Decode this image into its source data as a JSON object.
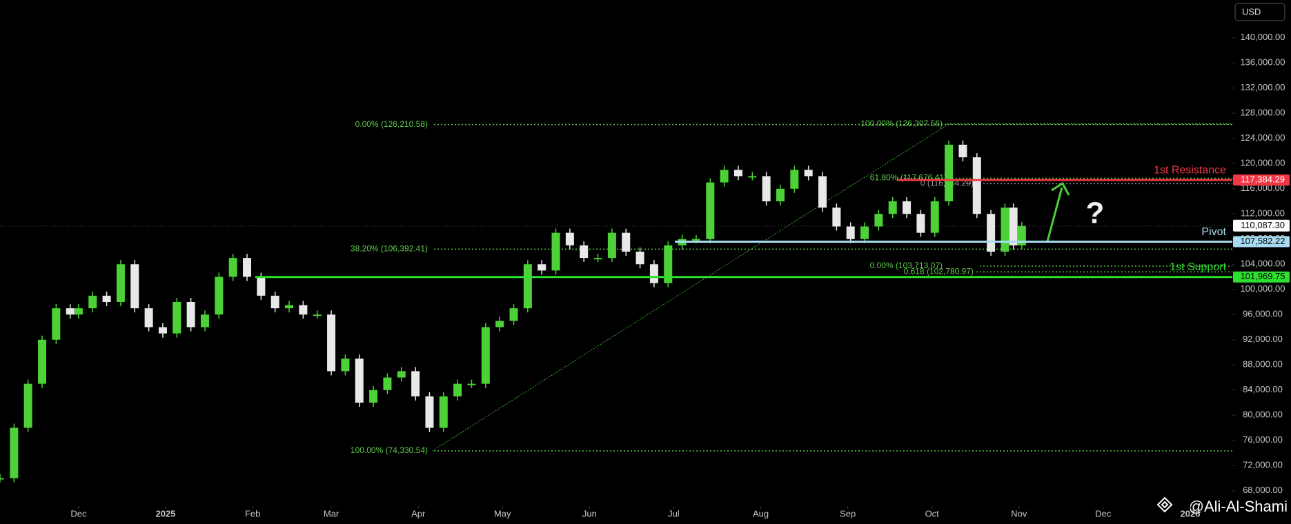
{
  "chart_data": {
    "type": "candlestick",
    "currency": "USD",
    "watermark": "@Ali-Al-Shami",
    "annotation": "?",
    "x": [
      -28,
      -23,
      -18,
      -13,
      -8,
      -3,
      0,
      5,
      10,
      15,
      20,
      25,
      30,
      35,
      40,
      45,
      50,
      55,
      60,
      65,
      70,
      75,
      80,
      85,
      90,
      95,
      100,
      105,
      110,
      115,
      120,
      125,
      130,
      135,
      140,
      145,
      150,
      155,
      160,
      165,
      170,
      175,
      180,
      185,
      190,
      195,
      200,
      205,
      210,
      215,
      220,
      225,
      230,
      235,
      240,
      245,
      250,
      255,
      260,
      265,
      270,
      275,
      280,
      285,
      290,
      295,
      300,
      305,
      310,
      315,
      320,
      325,
      330,
      333,
      336
    ],
    "values": [
      70000,
      78000,
      85000,
      92000,
      97000,
      96000,
      97000,
      99000,
      98000,
      104000,
      97000,
      94000,
      93000,
      98000,
      94000,
      96000,
      102000,
      105000,
      102000,
      99000,
      97000,
      97500,
      96000,
      96000,
      87000,
      89000,
      82000,
      84000,
      86000,
      87000,
      83000,
      78000,
      83000,
      85000,
      85000,
      94000,
      95000,
      97000,
      104000,
      103000,
      109000,
      107000,
      105000,
      105000,
      109000,
      106000,
      104000,
      101000,
      107000,
      108000,
      108000,
      117000,
      119000,
      118000,
      118000,
      114000,
      116000,
      119000,
      118000,
      113000,
      110000,
      108000,
      110000,
      112000,
      114000,
      112000,
      109000,
      114000,
      123000,
      121000,
      112000,
      106000,
      113000,
      107000,
      110087.3
    ],
    "up_color": "#4cd137",
    "down_color": "#e8e8e8",
    "xlim": [
      -28,
      411
    ],
    "xticks": [
      {
        "value": 0,
        "label": "Dec"
      },
      {
        "value": 31,
        "label": "2025"
      },
      {
        "value": 62,
        "label": "Feb"
      },
      {
        "value": 90,
        "label": "Mar"
      },
      {
        "value": 121,
        "label": "Apr"
      },
      {
        "value": 151,
        "label": "May"
      },
      {
        "value": 182,
        "label": "Jun"
      },
      {
        "value": 212,
        "label": "Jul"
      },
      {
        "value": 243,
        "label": "Aug"
      },
      {
        "value": 274,
        "label": "Sep"
      },
      {
        "value": 304,
        "label": "Oct"
      },
      {
        "value": 335,
        "label": "Nov"
      },
      {
        "value": 365,
        "label": "Dec"
      },
      {
        "value": 396,
        "label": "2026"
      }
    ],
    "ylim": [
      66000,
      146000
    ],
    "yticks": [
      {
        "value": 68000,
        "label": "68,000.00"
      },
      {
        "value": 72000,
        "label": "72,000.00"
      },
      {
        "value": 76000,
        "label": "76,000.00"
      },
      {
        "value": 80000,
        "label": "80,000.00"
      },
      {
        "value": 84000,
        "label": "84,000.00"
      },
      {
        "value": 88000,
        "label": "88,000.00"
      },
      {
        "value": 92000,
        "label": "92,000.00"
      },
      {
        "value": 96000,
        "label": "96,000.00"
      },
      {
        "value": 100000,
        "label": "100,000.00"
      },
      {
        "value": 104000,
        "label": "104,000.00"
      },
      {
        "value": 108000,
        "label": "108,000.00"
      },
      {
        "value": 112000,
        "label": "112,000.00"
      },
      {
        "value": 116000,
        "label": "116,000.00"
      },
      {
        "value": 120000,
        "label": "120,000.00"
      },
      {
        "value": 124000,
        "label": "124,000.00"
      },
      {
        "value": 128000,
        "label": "128,000.00"
      },
      {
        "value": 132000,
        "label": "132,000.00"
      },
      {
        "value": 136000,
        "label": "136,000.00"
      },
      {
        "value": 140000,
        "label": "140,000.00"
      }
    ],
    "last_price": {
      "value": 110087.3,
      "label": "110,087.30"
    },
    "levels": [
      {
        "name": "1st Resistance",
        "value": 117384.29,
        "value_label": "117,384.29",
        "color": "#f23645"
      },
      {
        "name": "Pivot",
        "value": 107582.22,
        "value_label": "107,582.22",
        "color": "#a8dcf2"
      },
      {
        "name": "1st Support",
        "value": 101969.75,
        "value_label": "101,969.75",
        "color": "#2ee02e"
      }
    ],
    "fib_levels": [
      {
        "value": 126210.58,
        "label": "0.00% (126,210.58)"
      },
      {
        "value": 106392.41,
        "label": "38.20% (106,392.41)"
      },
      {
        "value": 74330.54,
        "label": "100.00% (74,330.54)"
      },
      {
        "value": 126307.56,
        "label": "100.00% (126,307.56)"
      },
      {
        "value": 117676.41,
        "label": "61.80% (117,676.41)"
      },
      {
        "value": 116804.29,
        "label": "0 (116,804.29)"
      },
      {
        "value": 103713.07,
        "label": "0.00% (103,713.07)"
      },
      {
        "value": 102780.97,
        "label": "0.618 (102,780.97)"
      }
    ]
  }
}
